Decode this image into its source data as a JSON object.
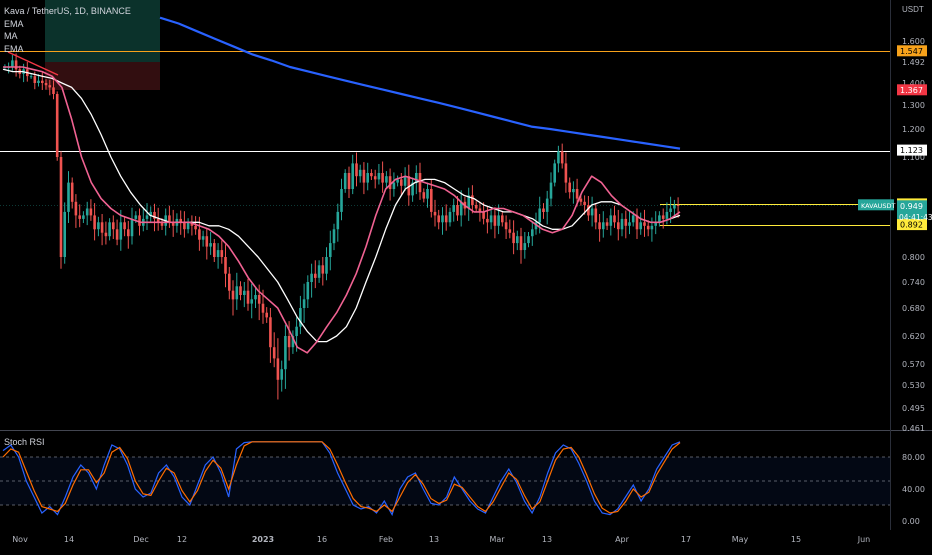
{
  "legend": {
    "title": "Kava / TetherUS, 1D, BINANCE",
    "ind1": "EMA",
    "ind2": "MA",
    "ind3": "EMA"
  },
  "axis": {
    "currency": "USDT"
  },
  "chart_data": [
    {
      "type": "candlestick",
      "title": "Kava / TetherUS, 1D, BINANCE",
      "symbol": "KAVAUSDT",
      "countdown": "04:41:43",
      "y_ticks": [
        "1.600",
        "1.492",
        "1.400",
        "1.300",
        "1.200",
        "1.100",
        "0.800",
        "0.740",
        "0.680",
        "0.620",
        "0.570",
        "0.530",
        "0.495",
        "0.461"
      ],
      "x_ticks": [
        "Nov",
        "14",
        "Dec",
        "12",
        "2023",
        "16",
        "Feb",
        "13",
        "Mar",
        "13",
        "Apr",
        "17",
        "May",
        "15",
        "Jun"
      ],
      "price_labels": [
        {
          "value": 1.547,
          "label": "1.547",
          "color": "#f7a21b"
        },
        {
          "value": 1.367,
          "label": "1.367",
          "color": "#f23645"
        },
        {
          "value": 1.123,
          "label": "1.123",
          "color": "#ffffff"
        },
        {
          "value": 0.952,
          "label": "0.952",
          "color": "#ffeb3b"
        },
        {
          "value": 0.949,
          "label": "0.949",
          "color": "#26a69a"
        },
        {
          "value": 0.892,
          "label": "0.892",
          "color": "#ffeb3b"
        }
      ],
      "horizontal_lines": [
        {
          "value": 1.547,
          "color": "#f7a21b"
        },
        {
          "value": 1.123,
          "color": "#ffffff"
        },
        {
          "value": 0.952,
          "color": "#ffeb3b"
        },
        {
          "value": 0.892,
          "color": "#ffeb3b"
        }
      ],
      "close_path": [
        1.47,
        1.47,
        1.5,
        1.46,
        1.44,
        1.46,
        1.43,
        1.43,
        1.4,
        1.41,
        1.4,
        1.39,
        1.38,
        1.35,
        1.1,
        0.8,
        0.93,
        1.02,
        0.96,
        0.92,
        0.91,
        0.92,
        0.94,
        0.92,
        0.88,
        0.9,
        0.87,
        0.86,
        0.9,
        0.88,
        0.85,
        0.9,
        0.88,
        0.86,
        0.91,
        0.92,
        0.89,
        0.91,
        0.92,
        0.93,
        0.91,
        0.9,
        0.89,
        0.92,
        0.9,
        0.89,
        0.91,
        0.9,
        0.88,
        0.9,
        0.89,
        0.88,
        0.85,
        0.86,
        0.83,
        0.84,
        0.8,
        0.82,
        0.8,
        0.76,
        0.72,
        0.7,
        0.73,
        0.71,
        0.72,
        0.69,
        0.7,
        0.71,
        0.69,
        0.67,
        0.66,
        0.6,
        0.58,
        0.54,
        0.56,
        0.62,
        0.6,
        0.62,
        0.64,
        0.68,
        0.7,
        0.74,
        0.76,
        0.75,
        0.78,
        0.76,
        0.8,
        0.84,
        0.88,
        0.93,
        1.0,
        1.05,
        1.0,
        1.08,
        1.04,
        1.06,
        1.02,
        1.05,
        1.04,
        1.03,
        1.05,
        1.02,
        1.04,
        1.0,
        1.02,
        1.03,
        1.01,
        1.04,
        0.98,
        1.02,
        1.05,
        0.99,
        0.97,
        1.0,
        0.93,
        0.92,
        0.9,
        0.92,
        0.9,
        0.93,
        0.95,
        0.92,
        0.96,
        0.94,
        0.98,
        0.95,
        0.94,
        0.93,
        0.91,
        0.9,
        0.92,
        0.89,
        0.92,
        0.9,
        0.88,
        0.87,
        0.84,
        0.86,
        0.82,
        0.84,
        0.86,
        0.88,
        0.9,
        0.94,
        0.93,
        0.97,
        1.02,
        1.08,
        1.12,
        1.08,
        1.02,
        0.99,
        1.0,
        0.97,
        0.96,
        0.95,
        0.92,
        0.94,
        0.9,
        0.88,
        0.9,
        0.89,
        0.92,
        0.9,
        0.88,
        0.91,
        0.89,
        0.9,
        0.92,
        0.88,
        0.9,
        0.89,
        0.88,
        0.89,
        0.9,
        0.92,
        0.91,
        0.93,
        0.94,
        0.95,
        0.949
      ],
      "ma_white": [
        1.46,
        1.45,
        1.45,
        1.44,
        1.43,
        1.42,
        1.4,
        1.38,
        1.33,
        1.26,
        1.18,
        1.1,
        1.04,
        0.99,
        0.95,
        0.92,
        0.91,
        0.9,
        0.9,
        0.9,
        0.9,
        0.89,
        0.89,
        0.88,
        0.86,
        0.83,
        0.8,
        0.77,
        0.74,
        0.7,
        0.66,
        0.63,
        0.61,
        0.61,
        0.62,
        0.64,
        0.68,
        0.74,
        0.8,
        0.88,
        0.95,
        1.0,
        1.02,
        1.03,
        1.03,
        1.02,
        1.0,
        0.98,
        0.97,
        0.95,
        0.94,
        0.93,
        0.93,
        0.92,
        0.91,
        0.89,
        0.88,
        0.88,
        0.89,
        0.92,
        0.95,
        0.96,
        0.96,
        0.95,
        0.93,
        0.91,
        0.9,
        0.9,
        0.91,
        0.92
      ],
      "ema_pink": [
        1.47,
        1.47,
        1.47,
        1.46,
        1.45,
        1.43,
        1.38,
        1.24,
        1.1,
        1.02,
        0.97,
        0.94,
        0.92,
        0.91,
        0.9,
        0.9,
        0.9,
        0.9,
        0.9,
        0.9,
        0.89,
        0.88,
        0.86,
        0.83,
        0.79,
        0.75,
        0.72,
        0.7,
        0.68,
        0.64,
        0.6,
        0.59,
        0.61,
        0.64,
        0.67,
        0.71,
        0.76,
        0.83,
        0.92,
        1.0,
        1.03,
        1.04,
        1.03,
        1.02,
        1.01,
        1.0,
        0.98,
        0.95,
        0.93,
        0.93,
        0.94,
        0.94,
        0.93,
        0.92,
        0.9,
        0.88,
        0.87,
        0.88,
        0.92,
        0.99,
        1.04,
        1.02,
        0.98,
        0.95,
        0.93,
        0.91,
        0.9,
        0.9,
        0.91,
        0.93
      ],
      "ema_blue": [
        1.72,
        1.69,
        1.65,
        1.61,
        1.57,
        1.53,
        1.5,
        1.47,
        1.45,
        1.43,
        1.41,
        1.39,
        1.37,
        1.35,
        1.33,
        1.31,
        1.29,
        1.27,
        1.25,
        1.23,
        1.21,
        1.2,
        1.19,
        1.18,
        1.17,
        1.16,
        1.15,
        1.14,
        1.13
      ]
    },
    {
      "type": "line",
      "title": "Stoch RSI",
      "y_ticks": [
        "80.00",
        "40.00",
        "0.00"
      ],
      "band": [
        20,
        80
      ],
      "series": [
        {
          "color": "#2962ff",
          "values": [
            88,
            95,
            80,
            50,
            30,
            10,
            18,
            8,
            30,
            55,
            70,
            60,
            40,
            70,
            95,
            90,
            70,
            40,
            30,
            35,
            60,
            70,
            55,
            30,
            20,
            45,
            70,
            80,
            60,
            30,
            90,
            98,
            99,
            99,
            99,
            99,
            99,
            99,
            99,
            99,
            99,
            99,
            85,
            60,
            40,
            20,
            15,
            18,
            10,
            25,
            8,
            40,
            55,
            60,
            40,
            22,
            20,
            30,
            55,
            40,
            25,
            15,
            10,
            30,
            50,
            65,
            48,
            25,
            10,
            30,
            60,
            85,
            95,
            90,
            72,
            50,
            25,
            10,
            8,
            15,
            30,
            45,
            25,
            40,
            65,
            80,
            95,
            99
          ]
        },
        {
          "color": "#ff6d00",
          "values": [
            80,
            90,
            86,
            62,
            38,
            18,
            15,
            12,
            22,
            45,
            64,
            64,
            48,
            60,
            86,
            92,
            78,
            50,
            34,
            32,
            50,
            66,
            60,
            38,
            24,
            38,
            62,
            76,
            66,
            40,
            70,
            94,
            99,
            99,
            99,
            99,
            99,
            99,
            99,
            99,
            99,
            99,
            90,
            70,
            48,
            28,
            18,
            16,
            12,
            20,
            12,
            30,
            48,
            58,
            46,
            28,
            22,
            26,
            46,
            42,
            30,
            18,
            12,
            24,
            42,
            60,
            52,
            32,
            15,
            24,
            50,
            76,
            90,
            92,
            80,
            58,
            34,
            16,
            10,
            12,
            24,
            40,
            30,
            36,
            58,
            74,
            90,
            98
          ]
        }
      ]
    }
  ]
}
